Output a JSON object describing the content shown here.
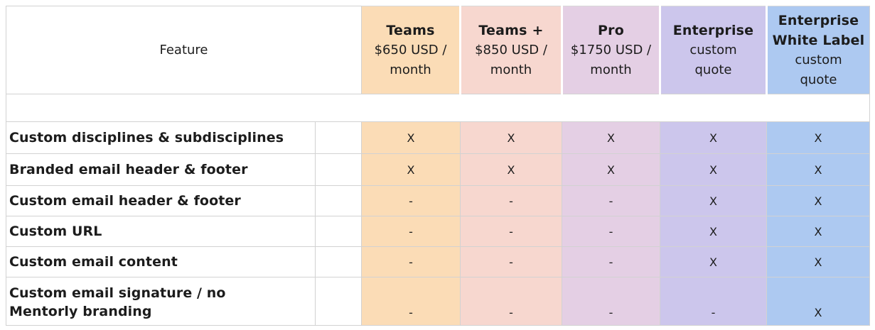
{
  "table": {
    "feature_header": "Feature",
    "plans": [
      {
        "name": "Teams",
        "price": "$650 USD /\nmonth",
        "color": "#fbdcb6"
      },
      {
        "name": "Teams +",
        "price": "$850 USD /\nmonth",
        "color": "#f7d7cf"
      },
      {
        "name": "Pro",
        "price": "$1750 USD /\nmonth",
        "color": "#e4cfe4"
      },
      {
        "name": "Enterprise",
        "price": "custom\nquote",
        "color": "#ccc6ec"
      },
      {
        "name": "Enterprise White Label",
        "price": "custom\nquote",
        "color": "#adc9f1"
      }
    ],
    "rows": [
      {
        "feature": "Custom disciplines & subdisciplines",
        "values": [
          "X",
          "X",
          "X",
          "X",
          "X"
        ]
      },
      {
        "feature": "Branded email header & footer",
        "values": [
          "X",
          "X",
          "X",
          "X",
          "X"
        ]
      },
      {
        "feature": "Custom email header & footer",
        "values": [
          "-",
          "-",
          "-",
          "X",
          "X"
        ]
      },
      {
        "feature": "Custom URL",
        "values": [
          "-",
          "-",
          "-",
          "X",
          "X"
        ]
      },
      {
        "feature": "Custom email content",
        "values": [
          "-",
          "-",
          "-",
          "X",
          "X"
        ]
      },
      {
        "feature": "Custom email signature / no\nMentorly branding",
        "values": [
          "-",
          "-",
          "-",
          "-",
          "X"
        ]
      }
    ],
    "colors": {
      "grid_line": "#d2d2d2",
      "text": "#1c1c1c",
      "header_gap": "#ffffff",
      "background": "#ffffff"
    }
  }
}
